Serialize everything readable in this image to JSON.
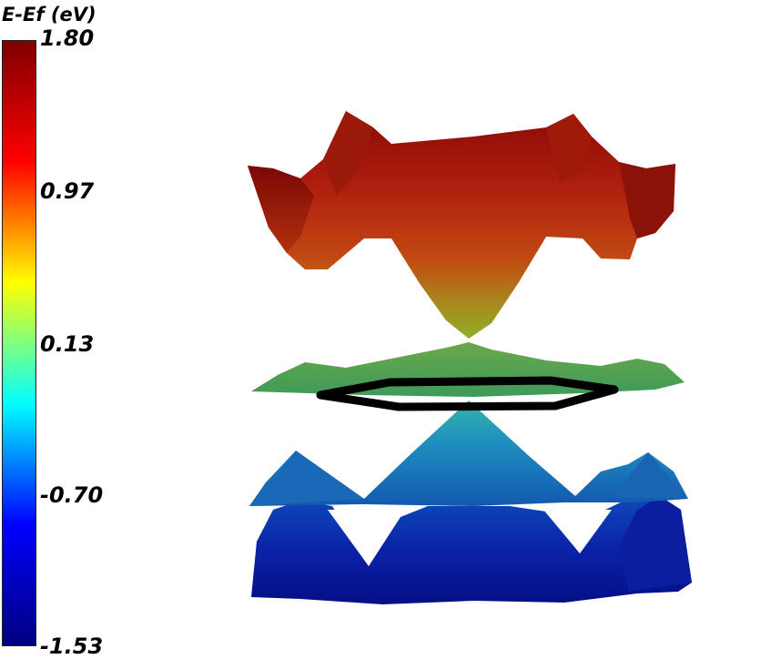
{
  "chart_data": {
    "type": "heatmap",
    "subtype": "3d-band-structure-surface",
    "colorbar": {
      "title": "E-Ef (eV)",
      "range": [
        -1.53,
        1.8
      ],
      "tick_labels": [
        "1.80",
        "0.97",
        "0.13",
        "-0.70",
        "-1.53"
      ],
      "tick_values": [
        1.8,
        0.97,
        0.13,
        -0.7,
        -1.53
      ],
      "colormap": "jet",
      "stops": [
        "#00007f",
        "#0000ff",
        "#00ffff",
        "#ffff00",
        "#ff0000",
        "#7f0000"
      ]
    },
    "surfaces": [
      {
        "band": "conduction",
        "energy_range": [
          0.5,
          1.8
        ],
        "dominant_color": "#b02010"
      },
      {
        "band": "fermi-plane",
        "energy_range": [
          0.05,
          0.25
        ],
        "dominant_color": "#4ea35a"
      },
      {
        "band": "valence-upper",
        "energy_range": [
          -0.9,
          0.1
        ],
        "dominant_color": "#1e72b8"
      },
      {
        "band": "valence-lower",
        "energy_range": [
          -1.53,
          -0.9
        ],
        "dominant_color": "#0a1aa0"
      }
    ],
    "brillouin_zone_outline": {
      "shape": "hexagon",
      "color": "#000000"
    }
  }
}
